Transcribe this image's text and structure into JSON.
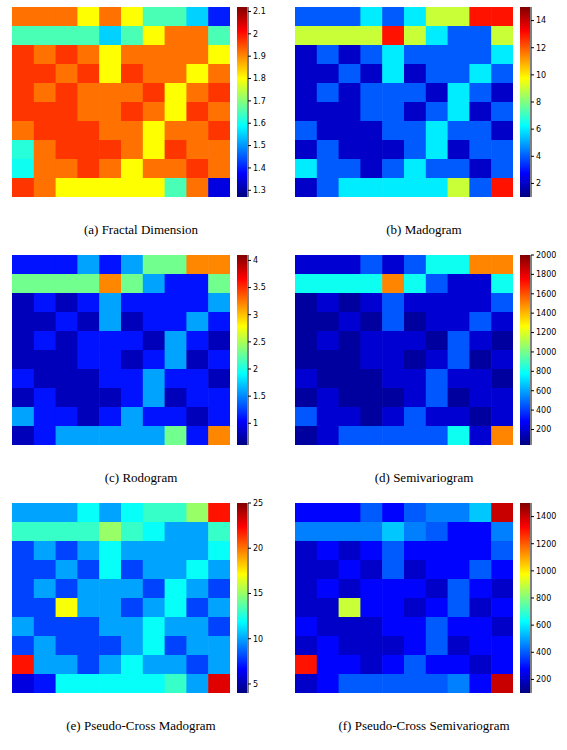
{
  "chart_data": [
    {
      "type": "heatmap",
      "title": "(a) Fractal Dimension",
      "tick_labels": false,
      "cells": [
        [
          1.92,
          1.92,
          1.92,
          1.8,
          1.92,
          1.8,
          1.65,
          1.65,
          1.55,
          1.4
        ],
        [
          1.65,
          1.65,
          1.65,
          1.65,
          1.55,
          1.65,
          1.8,
          1.92,
          1.92,
          1.65
        ],
        [
          1.97,
          1.92,
          1.97,
          1.92,
          1.8,
          1.92,
          1.92,
          1.92,
          1.92,
          1.8
        ],
        [
          1.97,
          1.97,
          1.92,
          1.97,
          1.8,
          1.97,
          1.92,
          1.92,
          1.8,
          1.92
        ],
        [
          1.97,
          1.92,
          1.97,
          1.92,
          1.92,
          1.92,
          1.97,
          1.8,
          1.92,
          1.97
        ],
        [
          1.97,
          1.97,
          1.97,
          1.92,
          1.92,
          1.97,
          1.92,
          1.8,
          1.97,
          1.92
        ],
        [
          1.92,
          1.97,
          1.97,
          1.97,
          1.92,
          1.92,
          1.8,
          1.92,
          1.92,
          1.97
        ],
        [
          1.62,
          1.92,
          1.97,
          1.97,
          1.97,
          1.92,
          1.8,
          1.97,
          1.92,
          1.92
        ],
        [
          1.6,
          1.92,
          1.92,
          1.97,
          1.92,
          1.8,
          1.92,
          1.92,
          1.97,
          1.92
        ],
        [
          1.97,
          1.92,
          1.8,
          1.8,
          1.8,
          1.8,
          1.8,
          1.65,
          1.92,
          1.35
        ]
      ],
      "colorbar": {
        "range": [
          1.27,
          2.12
        ],
        "ticks": [
          1.3,
          1.4,
          1.5,
          1.6,
          1.7,
          1.8,
          1.9,
          2,
          2.1
        ]
      }
    },
    {
      "type": "heatmap",
      "title": "(b) Madogram",
      "tick_labels": false,
      "cells": [
        [
          4,
          4,
          4,
          6,
          4,
          6,
          9,
          9,
          13,
          13
        ],
        [
          9,
          9,
          9,
          9,
          13,
          9,
          6,
          4,
          4,
          9
        ],
        [
          2,
          4,
          2,
          4,
          6,
          4,
          4,
          4,
          4,
          6
        ],
        [
          2,
          2,
          4,
          2,
          6,
          2,
          4,
          4,
          6,
          4
        ],
        [
          2,
          4,
          2,
          4,
          4,
          4,
          2,
          6,
          4,
          2
        ],
        [
          2,
          2,
          2,
          4,
          4,
          2,
          4,
          6,
          2,
          4
        ],
        [
          4,
          2,
          2,
          2,
          4,
          4,
          6,
          4,
          4,
          2
        ],
        [
          2,
          4,
          2,
          2,
          2,
          4,
          6,
          2,
          4,
          4
        ],
        [
          6,
          4,
          4,
          2,
          4,
          6,
          4,
          4,
          2,
          4
        ],
        [
          2,
          4,
          6,
          6,
          6,
          6,
          6,
          9,
          4,
          13
        ]
      ],
      "colorbar": {
        "range": [
          1,
          15
        ],
        "ticks": [
          2,
          4,
          6,
          8,
          10,
          12,
          14
        ]
      }
    },
    {
      "type": "heatmap",
      "title": "(c) Rodogram",
      "tick_labels": false,
      "cells": [
        [
          1.1,
          1.1,
          1.1,
          1.6,
          1.1,
          1.6,
          2.3,
          2.3,
          3.2,
          3.2
        ],
        [
          2.3,
          2.3,
          2.3,
          2.3,
          3.2,
          2.3,
          1.6,
          1.1,
          1.1,
          2.3
        ],
        [
          0.8,
          1.1,
          0.8,
          1.1,
          1.6,
          1.1,
          1.1,
          1.1,
          1.1,
          1.6
        ],
        [
          0.8,
          0.8,
          1.1,
          0.8,
          1.6,
          0.8,
          1.1,
          1.1,
          1.6,
          1.1
        ],
        [
          0.8,
          1.1,
          0.8,
          1.1,
          1.1,
          1.1,
          0.8,
          1.6,
          1.1,
          0.8
        ],
        [
          0.8,
          0.8,
          0.8,
          1.1,
          1.1,
          0.8,
          1.1,
          1.6,
          0.8,
          1.1
        ],
        [
          1.1,
          0.8,
          0.8,
          0.8,
          1.1,
          1.1,
          1.6,
          1.1,
          1.1,
          0.8
        ],
        [
          0.8,
          1.1,
          0.8,
          0.8,
          0.8,
          1.1,
          1.6,
          0.8,
          1.1,
          1.1
        ],
        [
          1.6,
          1.1,
          1.1,
          0.8,
          1.1,
          1.6,
          1.1,
          1.1,
          0.8,
          1.1
        ],
        [
          0.8,
          1.1,
          1.6,
          1.6,
          1.6,
          1.6,
          1.6,
          2.3,
          1.1,
          3.2
        ]
      ],
      "colorbar": {
        "range": [
          0.6,
          4.1
        ],
        "ticks": [
          1,
          1.5,
          2,
          2.5,
          3,
          3.5,
          4
        ]
      }
    },
    {
      "type": "heatmap",
      "title": "(d) Semivariogram",
      "tick_labels": false,
      "cells": [
        [
          200,
          200,
          200,
          450,
          200,
          450,
          800,
          800,
          1500,
          1500
        ],
        [
          800,
          800,
          800,
          800,
          1500,
          800,
          450,
          200,
          200,
          800
        ],
        [
          100,
          200,
          100,
          200,
          450,
          200,
          200,
          200,
          200,
          450
        ],
        [
          100,
          100,
          200,
          100,
          450,
          100,
          200,
          200,
          450,
          200
        ],
        [
          100,
          200,
          100,
          200,
          200,
          200,
          100,
          450,
          200,
          100
        ],
        [
          100,
          100,
          100,
          200,
          200,
          100,
          200,
          450,
          100,
          200
        ],
        [
          200,
          100,
          100,
          100,
          200,
          200,
          450,
          200,
          200,
          100
        ],
        [
          100,
          200,
          100,
          100,
          100,
          200,
          450,
          100,
          200,
          200
        ],
        [
          450,
          200,
          200,
          100,
          200,
          450,
          200,
          200,
          100,
          200
        ],
        [
          100,
          200,
          450,
          450,
          450,
          450,
          450,
          800,
          200,
          1500
        ]
      ],
      "colorbar": {
        "range": [
          40,
          2000
        ],
        "ticks": [
          200,
          400,
          600,
          800,
          1000,
          1200,
          1400,
          1600,
          1800,
          2000
        ]
      }
    },
    {
      "type": "heatmap",
      "title": "(e) Pseudo-Cross Madogram",
      "tick_labels": false,
      "cells": [
        [
          10,
          10,
          10,
          12,
          10,
          12,
          13,
          13,
          15,
          22
        ],
        [
          13,
          13,
          13,
          13,
          15,
          13,
          12,
          10,
          10,
          13
        ],
        [
          8,
          10,
          8,
          10,
          12,
          10,
          10,
          10,
          10,
          12
        ],
        [
          8,
          8,
          10,
          8,
          12,
          8,
          10,
          10,
          12,
          10
        ],
        [
          8,
          10,
          8,
          10,
          10,
          10,
          8,
          12,
          10,
          8
        ],
        [
          8,
          8,
          17,
          10,
          10,
          8,
          10,
          12,
          8,
          10
        ],
        [
          10,
          8,
          8,
          8,
          10,
          10,
          12,
          10,
          10,
          8
        ],
        [
          8,
          10,
          8,
          8,
          8,
          10,
          12,
          8,
          10,
          10
        ],
        [
          22,
          10,
          10,
          8,
          10,
          12,
          10,
          10,
          8,
          10
        ],
        [
          6,
          7,
          12,
          12,
          12,
          12,
          12,
          13,
          10,
          23
        ]
      ],
      "colorbar": {
        "range": [
          4,
          25
        ],
        "ticks": [
          5,
          10,
          15,
          20,
          25
        ]
      }
    },
    {
      "type": "heatmap",
      "title": "(f) Pseudo-Cross Semivariogram",
      "tick_labels": false,
      "cells": [
        [
          280,
          280,
          280,
          400,
          280,
          400,
          450,
          450,
          550,
          1400
        ],
        [
          450,
          450,
          450,
          450,
          550,
          450,
          400,
          280,
          280,
          450
        ],
        [
          200,
          280,
          200,
          280,
          400,
          280,
          280,
          280,
          280,
          400
        ],
        [
          200,
          200,
          280,
          200,
          400,
          200,
          280,
          280,
          400,
          280
        ],
        [
          200,
          280,
          200,
          280,
          280,
          280,
          200,
          400,
          280,
          200
        ],
        [
          200,
          200,
          900,
          280,
          280,
          200,
          280,
          400,
          200,
          280
        ],
        [
          280,
          200,
          200,
          200,
          280,
          280,
          400,
          280,
          280,
          200
        ],
        [
          200,
          280,
          200,
          200,
          200,
          280,
          400,
          200,
          280,
          280
        ],
        [
          1300,
          280,
          280,
          200,
          280,
          400,
          280,
          280,
          200,
          280
        ],
        [
          200,
          280,
          400,
          400,
          400,
          400,
          400,
          450,
          280,
          1400
        ]
      ],
      "colorbar": {
        "range": [
          100,
          1500
        ],
        "ticks": [
          200,
          400,
          600,
          800,
          1000,
          1200,
          1400
        ]
      }
    }
  ]
}
